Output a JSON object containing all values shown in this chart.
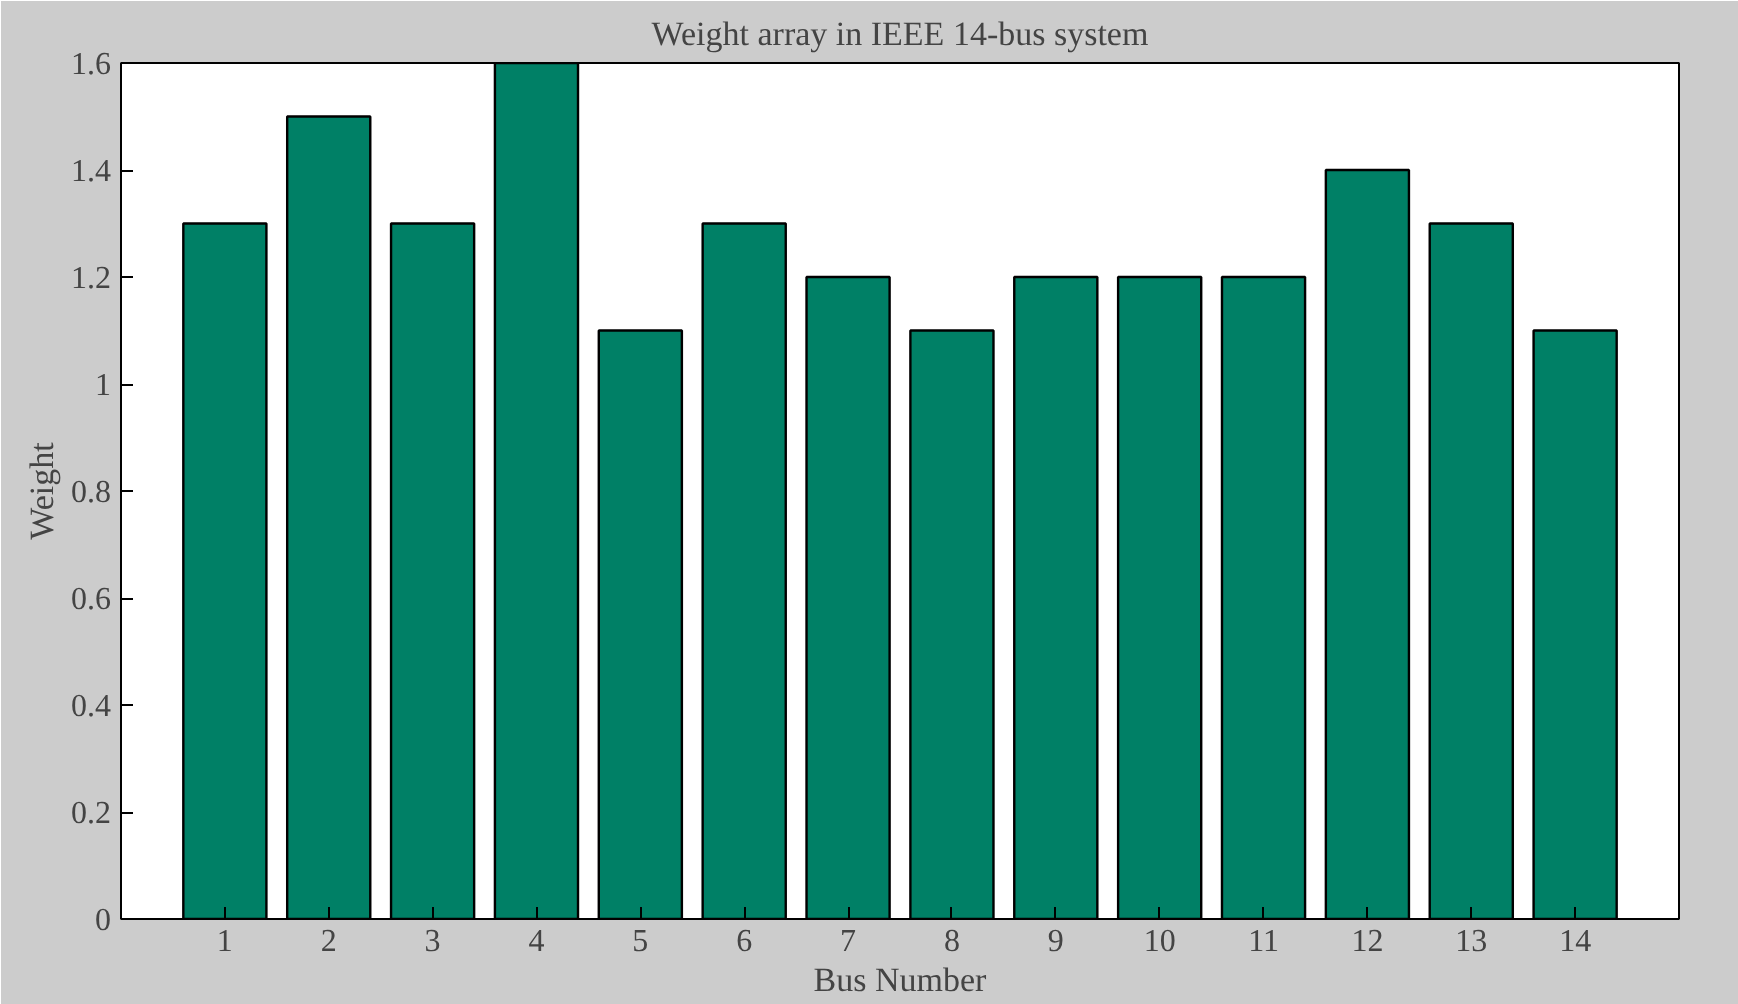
{
  "chart_data": {
    "type": "bar",
    "title": "Weight array in IEEE 14-bus system",
    "xlabel": "Bus Number",
    "ylabel": "Weight",
    "x": [
      1,
      2,
      3,
      4,
      5,
      6,
      7,
      8,
      9,
      10,
      11,
      12,
      13,
      14
    ],
    "values": [
      1.3,
      1.5,
      1.3,
      1.6,
      1.1,
      1.3,
      1.2,
      1.1,
      1.2,
      1.2,
      1.2,
      1.4,
      1.3,
      1.1
    ],
    "color": "#008066",
    "xlim": [
      0,
      15
    ],
    "xticks": [
      1,
      2,
      3,
      4,
      5,
      6,
      7,
      8,
      9,
      10,
      11,
      12,
      13,
      14
    ],
    "ylim": [
      0,
      1.6
    ],
    "yticks": [
      0,
      0.2,
      0.4,
      0.6,
      0.8,
      1,
      1.2,
      1.4,
      1.6
    ],
    "grid": false
  }
}
